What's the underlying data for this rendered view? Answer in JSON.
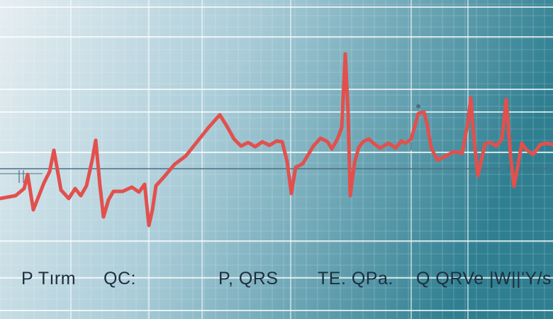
{
  "colors": {
    "background_left": "#e6eef2",
    "background_mid": "#a9ccd8",
    "background_right": "#2f7f91",
    "grid_minor": "#ffffff",
    "grid_major": "#ffffff",
    "trace": "#e2504d",
    "baseline": "#4f6e84",
    "label_text": "#1d2e3d"
  },
  "labels": [
    "P Tırm",
    "QC:",
    "P, QRS",
    "TE. QPa.",
    "Q QRVe |W||'Y/s"
  ]
}
